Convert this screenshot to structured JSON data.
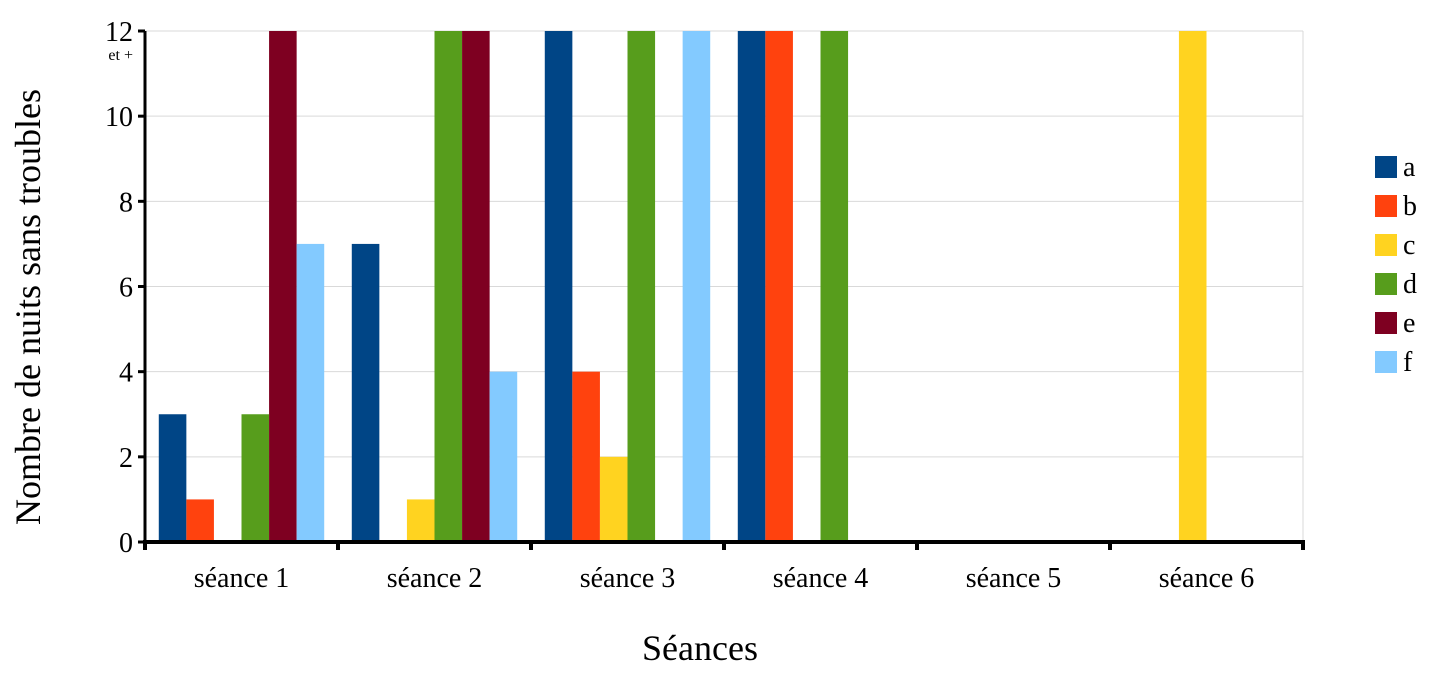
{
  "chart_data": {
    "type": "bar",
    "xlabel": "Séances",
    "ylabel": "Nombre de nuits sans troubles",
    "ylim": [
      0,
      12
    ],
    "yticks": [
      0,
      2,
      4,
      6,
      8,
      10,
      12
    ],
    "top_tick_note": "et +",
    "grid": true,
    "legend_position": "right",
    "categories": [
      "séance 1",
      "séance 2",
      "séance 3",
      "séance 4",
      "séance 5",
      "séance 6"
    ],
    "series": [
      {
        "name": "a",
        "color": "#004586",
        "values": [
          3,
          7,
          12,
          12,
          0,
          0
        ]
      },
      {
        "name": "b",
        "color": "#ff420e",
        "values": [
          1,
          0,
          4,
          12,
          0,
          0
        ]
      },
      {
        "name": "c",
        "color": "#ffd320",
        "values": [
          0,
          1,
          2,
          0,
          0,
          12
        ]
      },
      {
        "name": "d",
        "color": "#579d1c",
        "values": [
          3,
          12,
          12,
          12,
          0,
          0
        ]
      },
      {
        "name": "e",
        "color": "#7e0021",
        "values": [
          12,
          12,
          0,
          0,
          0,
          0
        ]
      },
      {
        "name": "f",
        "color": "#83caff",
        "values": [
          7,
          4,
          12,
          0,
          0,
          0
        ]
      }
    ]
  }
}
